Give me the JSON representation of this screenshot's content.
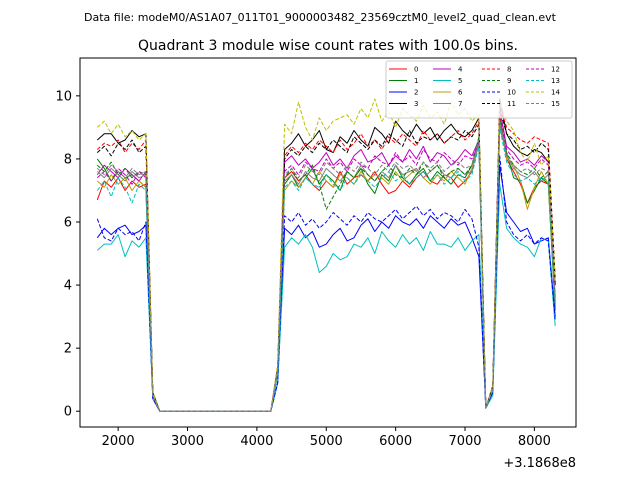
{
  "chart_data": {
    "type": "line",
    "suptitle": "Data file: modeM0/AS1A07_011T01_9000003482_23569cztM0_level2_quad_clean.evt",
    "title": "Quadrant 3 module wise count rates with 100.0s bins.",
    "xlabel": "",
    "ylabel": "",
    "offset_label": "+3.1868e8",
    "xlim": [
      1450,
      8600
    ],
    "ylim": [
      -0.5,
      11.2
    ],
    "xticks": [
      2000,
      3000,
      4000,
      5000,
      6000,
      7000,
      8000
    ],
    "xtick_labels": [
      "2000",
      "3000",
      "4000",
      "5000",
      "6000",
      "7000",
      "8000"
    ],
    "yticks": [
      0,
      2,
      4,
      6,
      8,
      10
    ],
    "ytick_labels": [
      "0",
      "2",
      "4",
      "6",
      "8",
      "10"
    ],
    "grid": false,
    "legend_position": "top-right",
    "legend_columns": 4,
    "x": [
      1700,
      1800,
      1900,
      2000,
      2100,
      2200,
      2300,
      2400,
      2500,
      2600,
      2700,
      2800,
      2900,
      3000,
      3100,
      3200,
      3300,
      3400,
      3500,
      3600,
      3700,
      3800,
      3900,
      4000,
      4100,
      4200,
      4300,
      4400,
      4500,
      4600,
      4700,
      4800,
      4900,
      5000,
      5100,
      5200,
      5300,
      5400,
      5500,
      5600,
      5700,
      5800,
      5900,
      6000,
      6100,
      6200,
      6300,
      6400,
      6500,
      6600,
      6700,
      6800,
      6900,
      7000,
      7100,
      7200,
      7300,
      7400,
      7500,
      7600,
      7700,
      7800,
      7900,
      8000,
      8100,
      8200,
      8300
    ],
    "series": [
      {
        "name": "0",
        "color": "#ff0000",
        "dash": "solid",
        "values": [
          6.7,
          7.3,
          7.1,
          7.4,
          7.0,
          7.3,
          7.1,
          7.2,
          0.5,
          0,
          0,
          0,
          0,
          0,
          0,
          0,
          0,
          0,
          0,
          0,
          0,
          0,
          0,
          0,
          0,
          0,
          1.2,
          7.4,
          7.6,
          7.3,
          7.5,
          7.2,
          7.0,
          7.3,
          7.1,
          7.6,
          7.2,
          7.4,
          7.5,
          7.3,
          7.6,
          7.2,
          6.9,
          7.0,
          7.3,
          7.1,
          7.4,
          7.6,
          7.3,
          7.2,
          7.5,
          7.4,
          7.1,
          7.3,
          7.6,
          8.6,
          0.1,
          0.7,
          9.4,
          8.0,
          7.6,
          7.2,
          6.6,
          7.1,
          7.3,
          7.2,
          3.3
        ]
      },
      {
        "name": "1",
        "color": "#008000",
        "dash": "solid",
        "values": [
          8.0,
          7.7,
          7.3,
          7.6,
          7.4,
          7.5,
          7.3,
          7.1,
          0.5,
          0,
          0,
          0,
          0,
          0,
          0,
          0,
          0,
          0,
          0,
          0,
          0,
          0,
          0,
          0,
          0,
          0,
          1.3,
          7.2,
          7.5,
          7.1,
          7.4,
          7.7,
          7.2,
          7.5,
          7.3,
          7.0,
          7.6,
          7.4,
          7.7,
          7.2,
          6.9,
          7.5,
          7.3,
          7.8,
          7.4,
          7.2,
          7.5,
          7.7,
          7.3,
          7.6,
          7.4,
          7.2,
          7.5,
          7.4,
          7.8,
          8.6,
          0.1,
          0.7,
          9.0,
          8.2,
          7.4,
          7.3,
          6.6,
          7.0,
          7.4,
          7.2,
          3.2
        ]
      },
      {
        "name": "2",
        "color": "#0000ff",
        "dash": "solid",
        "values": [
          5.5,
          5.8,
          5.6,
          5.8,
          5.9,
          5.6,
          5.7,
          5.9,
          0.4,
          0,
          0,
          0,
          0,
          0,
          0,
          0,
          0,
          0,
          0,
          0,
          0,
          0,
          0,
          0,
          0,
          0,
          0.9,
          5.8,
          5.6,
          5.9,
          5.5,
          5.7,
          5.2,
          5.3,
          5.6,
          5.8,
          5.4,
          5.5,
          5.9,
          6.1,
          5.7,
          6.0,
          5.8,
          6.2,
          6.0,
          5.9,
          6.1,
          5.8,
          6.2,
          6.0,
          5.8,
          6.1,
          5.9,
          6.0,
          5.5,
          4.9,
          0.1,
          0.6,
          7.8,
          6.3,
          6.0,
          5.7,
          5.8,
          5.3,
          5.4,
          5.5,
          3.0
        ]
      },
      {
        "name": "3",
        "color": "#000000",
        "dash": "solid",
        "values": [
          8.6,
          8.8,
          8.8,
          8.5,
          8.6,
          8.9,
          8.7,
          8.8,
          0.6,
          0,
          0,
          0,
          0,
          0,
          0,
          0,
          0,
          0,
          0,
          0,
          0,
          0,
          0,
          0,
          0,
          0,
          1.4,
          8.3,
          8.5,
          8.8,
          8.4,
          8.6,
          8.9,
          8.3,
          8.2,
          8.7,
          8.5,
          8.9,
          8.6,
          8.4,
          9.0,
          8.8,
          8.5,
          9.2,
          8.9,
          8.7,
          9.1,
          8.8,
          9.0,
          8.6,
          8.9,
          9.1,
          8.8,
          8.7,
          8.9,
          9.3,
          0.1,
          0.8,
          9.9,
          8.8,
          8.4,
          8.2,
          8.1,
          8.3,
          8.2,
          7.9,
          4.0
        ]
      },
      {
        "name": "4",
        "color": "#bf00bf",
        "dash": "solid",
        "values": [
          7.5,
          7.8,
          7.6,
          7.4,
          7.7,
          7.5,
          7.3,
          7.6,
          0.5,
          0,
          0,
          0,
          0,
          0,
          0,
          0,
          0,
          0,
          0,
          0,
          0,
          0,
          0,
          0,
          0,
          0,
          1.3,
          7.9,
          8.1,
          7.8,
          8.0,
          7.7,
          7.9,
          8.2,
          7.8,
          8.0,
          7.7,
          8.1,
          8.3,
          7.9,
          8.0,
          8.2,
          7.8,
          8.1,
          7.9,
          8.3,
          8.0,
          8.4,
          7.9,
          8.2,
          8.1,
          7.8,
          8.0,
          8.3,
          8.1,
          8.6,
          0.1,
          0.7,
          9.6,
          8.4,
          8.2,
          7.9,
          8.0,
          7.8,
          8.1,
          7.9,
          3.6
        ]
      },
      {
        "name": "5",
        "color": "#00bfbf",
        "dash": "solid",
        "values": [
          5.1,
          5.3,
          5.3,
          5.6,
          4.9,
          5.4,
          5.2,
          5.5,
          0.4,
          0,
          0,
          0,
          0,
          0,
          0,
          0,
          0,
          0,
          0,
          0,
          0,
          0,
          0,
          0,
          0,
          0,
          0.9,
          5.2,
          5.5,
          5.3,
          5.6,
          5.2,
          4.4,
          4.6,
          5.0,
          4.8,
          4.9,
          5.3,
          5.2,
          5.5,
          5.0,
          5.7,
          5.4,
          5.2,
          5.6,
          5.3,
          5.5,
          5.1,
          5.7,
          5.3,
          5.3,
          5.2,
          5.5,
          5.1,
          5.4,
          5.6,
          0.1,
          0.5,
          7.2,
          5.8,
          5.5,
          5.3,
          5.2,
          4.9,
          5.5,
          5.4,
          2.7
        ]
      },
      {
        "name": "6",
        "color": "#bf9f00",
        "dash": "solid",
        "values": [
          7.3,
          7.1,
          7.5,
          7.2,
          7.4,
          7.0,
          7.3,
          7.1,
          0.5,
          0,
          0,
          0,
          0,
          0,
          0,
          0,
          0,
          0,
          0,
          0,
          0,
          0,
          0,
          0,
          0,
          0,
          1.2,
          7.0,
          7.3,
          7.1,
          7.4,
          7.2,
          7.6,
          7.3,
          7.1,
          7.5,
          7.4,
          7.2,
          7.6,
          7.3,
          7.5,
          7.4,
          7.2,
          7.6,
          7.3,
          7.5,
          7.7,
          7.4,
          7.2,
          7.5,
          7.3,
          7.6,
          7.4,
          7.2,
          7.7,
          8.5,
          0.1,
          0.7,
          9.2,
          8.0,
          7.8,
          7.3,
          6.4,
          7.1,
          7.6,
          7.2,
          3.5
        ]
      },
      {
        "name": "7",
        "color": "#808080",
        "dash": "solid",
        "values": [
          7.6,
          7.4,
          7.7,
          7.5,
          7.3,
          7.6,
          7.4,
          7.5,
          0.5,
          0,
          0,
          0,
          0,
          0,
          0,
          0,
          0,
          0,
          0,
          0,
          0,
          0,
          0,
          0,
          0,
          0,
          1.2,
          7.3,
          7.5,
          7.2,
          7.6,
          7.4,
          7.3,
          7.7,
          7.5,
          7.3,
          7.6,
          7.4,
          7.8,
          7.5,
          7.3,
          7.6,
          7.4,
          7.8,
          7.5,
          7.6,
          7.7,
          7.4,
          7.6,
          7.8,
          7.5,
          7.4,
          7.7,
          7.5,
          7.6,
          8.5,
          0.1,
          0.7,
          9.1,
          8.1,
          7.7,
          7.5,
          7.4,
          7.6,
          7.3,
          7.5,
          3.4
        ]
      },
      {
        "name": "8",
        "color": "#ff0000",
        "dash": "dashed",
        "values": [
          8.3,
          8.5,
          8.4,
          8.6,
          8.2,
          8.5,
          8.3,
          8.6,
          0.6,
          0,
          0,
          0,
          0,
          0,
          0,
          0,
          0,
          0,
          0,
          0,
          0,
          0,
          0,
          0,
          0,
          0,
          1.4,
          8.1,
          8.4,
          8.2,
          8.5,
          8.3,
          8.6,
          8.4,
          8.2,
          8.6,
          8.3,
          8.5,
          8.8,
          8.4,
          8.6,
          8.3,
          8.7,
          8.5,
          8.8,
          8.6,
          8.4,
          8.9,
          8.6,
          8.8,
          8.5,
          8.7,
          8.9,
          8.6,
          8.8,
          9.2,
          0.1,
          0.8,
          9.7,
          9.0,
          8.8,
          8.6,
          8.5,
          8.7,
          8.6,
          8.5,
          4.2
        ]
      },
      {
        "name": "9",
        "color": "#008000",
        "dash": "dashed",
        "values": [
          7.8,
          7.6,
          7.9,
          7.5,
          7.7,
          7.4,
          7.6,
          7.5,
          0.5,
          0,
          0,
          0,
          0,
          0,
          0,
          0,
          0,
          0,
          0,
          0,
          0,
          0,
          0,
          0,
          0,
          0,
          1.3,
          7.4,
          7.7,
          7.3,
          7.5,
          7.8,
          7.2,
          6.4,
          6.8,
          7.2,
          7.6,
          7.4,
          7.7,
          7.5,
          7.3,
          7.6,
          7.8,
          7.5,
          7.4,
          7.7,
          7.5,
          7.9,
          7.6,
          7.8,
          7.4,
          7.6,
          7.7,
          7.5,
          7.8,
          8.7,
          0.1,
          0.7,
          9.3,
          8.2,
          7.8,
          7.6,
          7.5,
          7.7,
          7.4,
          7.6,
          3.4
        ]
      },
      {
        "name": "10",
        "color": "#0000ff",
        "dash": "dashed",
        "values": [
          6.1,
          5.5,
          5.4,
          5.8,
          5.6,
          5.7,
          5.4,
          6.0,
          0.4,
          0,
          0,
          0,
          0,
          0,
          0,
          0,
          0,
          0,
          0,
          0,
          0,
          0,
          0,
          0,
          0,
          0,
          0.9,
          6.2,
          6.0,
          6.3,
          5.9,
          6.1,
          5.8,
          6.0,
          6.3,
          6.1,
          5.9,
          6.2,
          6.0,
          6.3,
          6.1,
          6.0,
          6.2,
          6.4,
          6.1,
          6.3,
          6.5,
          6.2,
          6.4,
          6.1,
          6.3,
          6.2,
          6.0,
          6.4,
          6.1,
          5.2,
          0.1,
          0.6,
          8.1,
          6.0,
          5.6,
          5.4,
          5.6,
          5.3,
          5.5,
          5.4,
          2.9
        ]
      },
      {
        "name": "11",
        "color": "#000000",
        "dash": "dashed",
        "values": [
          8.2,
          8.4,
          8.1,
          8.5,
          8.3,
          8.6,
          8.2,
          8.4,
          0.6,
          0,
          0,
          0,
          0,
          0,
          0,
          0,
          0,
          0,
          0,
          0,
          0,
          0,
          0,
          0,
          0,
          0,
          1.4,
          8.0,
          8.3,
          8.1,
          8.4,
          8.2,
          8.5,
          8.3,
          8.6,
          8.4,
          8.2,
          8.7,
          8.5,
          8.3,
          8.6,
          8.4,
          8.8,
          8.6,
          8.4,
          8.9,
          8.5,
          8.7,
          8.6,
          8.8,
          8.5,
          8.7,
          8.6,
          8.9,
          8.7,
          9.1,
          0.1,
          0.8,
          9.6,
          8.8,
          8.6,
          8.3,
          8.4,
          8.2,
          8.5,
          8.3,
          4.1
        ]
      },
      {
        "name": "12",
        "color": "#bf00bf",
        "dash": "dashed",
        "values": [
          7.4,
          7.6,
          7.3,
          7.7,
          7.5,
          7.2,
          7.6,
          7.4,
          0.5,
          0,
          0,
          0,
          0,
          0,
          0,
          0,
          0,
          0,
          0,
          0,
          0,
          0,
          0,
          0,
          0,
          0,
          1.3,
          7.6,
          7.8,
          7.5,
          7.9,
          7.7,
          7.6,
          8.0,
          7.7,
          7.9,
          7.6,
          8.0,
          7.8,
          7.7,
          8.1,
          7.9,
          7.8,
          8.2,
          7.9,
          8.1,
          7.8,
          8.3,
          8.0,
          7.9,
          8.2,
          8.0,
          7.8,
          8.1,
          8.0,
          8.5,
          0.1,
          0.7,
          9.5,
          8.3,
          8.0,
          7.8,
          7.9,
          7.7,
          8.0,
          7.8,
          3.5
        ]
      },
      {
        "name": "13",
        "color": "#00bfbf",
        "dash": "dashed",
        "values": [
          7.0,
          7.3,
          6.8,
          7.4,
          7.1,
          6.6,
          7.2,
          7.0,
          0.5,
          0,
          0,
          0,
          0,
          0,
          0,
          0,
          0,
          0,
          0,
          0,
          0,
          0,
          0,
          0,
          0,
          0,
          1.2,
          7.1,
          7.3,
          7.0,
          7.4,
          7.2,
          7.1,
          7.5,
          7.2,
          7.0,
          7.4,
          7.2,
          7.5,
          7.3,
          7.1,
          7.4,
          7.6,
          7.3,
          7.5,
          7.2,
          7.4,
          7.6,
          7.3,
          7.5,
          7.2,
          7.4,
          7.6,
          7.3,
          7.5,
          8.4,
          0.1,
          0.7,
          9.0,
          7.9,
          7.5,
          7.3,
          7.4,
          7.2,
          7.4,
          7.3,
          3.3
        ]
      },
      {
        "name": "14",
        "color": "#bfbf00",
        "dash": "dashed",
        "values": [
          9.0,
          9.2,
          8.8,
          9.1,
          8.7,
          8.9,
          8.6,
          8.8,
          0.6,
          0,
          0,
          0,
          0,
          0,
          0,
          0,
          0,
          0,
          0,
          0,
          0,
          0,
          0,
          0,
          0,
          0,
          1.5,
          9.1,
          8.8,
          9.8,
          9.0,
          8.6,
          9.3,
          8.9,
          9.2,
          9.3,
          9.4,
          9.1,
          9.6,
          9.3,
          9.9,
          9.2,
          9.5,
          9.0,
          9.6,
          9.4,
          9.2,
          9.7,
          9.3,
          9.5,
          9.1,
          9.8,
          9.4,
          9.6,
          9.2,
          9.4,
          0.1,
          0.8,
          9.8,
          9.2,
          8.9,
          8.2,
          7.9,
          8.5,
          7.8,
          8.1,
          4.1
        ]
      },
      {
        "name": "15",
        "color": "#808080",
        "dash": "dashed",
        "values": [
          7.7,
          7.5,
          7.8,
          7.6,
          7.4,
          7.7,
          7.5,
          7.6,
          0.5,
          0,
          0,
          0,
          0,
          0,
          0,
          0,
          0,
          0,
          0,
          0,
          0,
          0,
          0,
          0,
          0,
          0,
          1.3,
          7.5,
          7.7,
          7.4,
          7.8,
          7.6,
          7.5,
          7.9,
          7.7,
          7.5,
          7.8,
          7.6,
          7.9,
          7.7,
          7.5,
          7.8,
          7.6,
          7.9,
          7.7,
          7.8,
          7.6,
          7.9,
          7.7,
          7.9,
          7.6,
          7.8,
          7.9,
          7.7,
          7.8,
          8.6,
          0.1,
          0.7,
          9.2,
          8.1,
          7.8,
          7.6,
          7.7,
          7.5,
          7.7,
          7.6,
          3.4
        ]
      }
    ]
  }
}
